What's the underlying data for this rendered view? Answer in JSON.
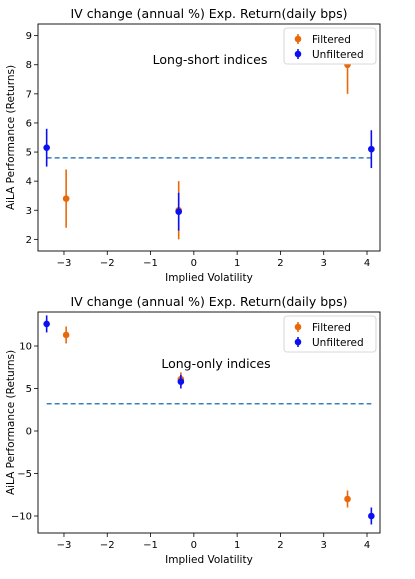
{
  "colors": {
    "filtered": "#E8690B",
    "unfiltered": "#0B10F0",
    "reference": "#3A7FC1"
  },
  "chart_data": [
    {
      "type": "scatter",
      "title": "IV change (annual %) Exp. Return(daily bps)",
      "xlabel": "Implied Volatility",
      "ylabel": "AiLA Performance (Returns)",
      "annotation": "Long-short indices",
      "xlim": [
        -3.6,
        4.3
      ],
      "ylim": [
        1.6,
        9.4
      ],
      "xticks": [
        -3,
        -2,
        -1,
        0,
        1,
        2,
        3,
        4
      ],
      "xtick_labels": [
        "−3",
        "−2",
        "−1",
        "0",
        "1",
        "2",
        "3",
        "4"
      ],
      "yticks": [
        2,
        3,
        4,
        5,
        6,
        7,
        8,
        9
      ],
      "ytick_labels": [
        "2",
        "3",
        "4",
        "5",
        "6",
        "7",
        "8",
        "9"
      ],
      "legend_loc": "top-right",
      "reference_line": {
        "y": 4.8,
        "x": [
          -3.4,
          4.1
        ],
        "style": "dashed"
      },
      "series": [
        {
          "name": "Filtered",
          "color": "#E8690B",
          "points": [
            {
              "x": -2.95,
              "y": 3.4,
              "lo": 2.4,
              "hi": 4.4
            },
            {
              "x": -0.35,
              "y": 3.0,
              "lo": 2.0,
              "hi": 4.0
            },
            {
              "x": 3.55,
              "y": 8.0,
              "lo": 7.0,
              "hi": 9.0
            }
          ]
        },
        {
          "name": "Unfiltered",
          "color": "#0B10F0",
          "points": [
            {
              "x": -3.4,
              "y": 5.15,
              "lo": 4.5,
              "hi": 5.8
            },
            {
              "x": -0.35,
              "y": 2.95,
              "lo": 2.3,
              "hi": 3.6
            },
            {
              "x": 4.1,
              "y": 5.1,
              "lo": 4.45,
              "hi": 5.75
            }
          ]
        }
      ]
    },
    {
      "type": "scatter",
      "title": "IV change (annual %) Exp. Return(daily bps)",
      "xlabel": "Implied Volatility",
      "ylabel": "AiLA Performance (Returns)",
      "annotation": "Long-only indices",
      "xlim": [
        -3.6,
        4.3
      ],
      "ylim": [
        -12,
        14
      ],
      "xticks": [
        -3,
        -2,
        -1,
        0,
        1,
        2,
        3,
        4
      ],
      "xtick_labels": [
        "−3",
        "−2",
        "−1",
        "0",
        "1",
        "2",
        "3",
        "4"
      ],
      "yticks": [
        -10,
        -5,
        0,
        5,
        10
      ],
      "ytick_labels": [
        "−10",
        "−5",
        "0",
        "5",
        "10"
      ],
      "legend_loc": "top-right",
      "reference_line": {
        "y": 3.2,
        "x": [
          -3.4,
          4.1
        ],
        "style": "dashed"
      },
      "series": [
        {
          "name": "Filtered",
          "color": "#E8690B",
          "points": [
            {
              "x": -2.95,
              "y": 11.3,
              "lo": 10.3,
              "hi": 12.3
            },
            {
              "x": -0.3,
              "y": 6.1,
              "lo": 5.3,
              "hi": 6.9
            },
            {
              "x": 3.55,
              "y": -8.0,
              "lo": -9.0,
              "hi": -7.0
            }
          ]
        },
        {
          "name": "Unfiltered",
          "color": "#0B10F0",
          "points": [
            {
              "x": -3.4,
              "y": 12.6,
              "lo": 11.6,
              "hi": 13.6
            },
            {
              "x": -0.3,
              "y": 5.8,
              "lo": 5.0,
              "hi": 6.6
            },
            {
              "x": 4.1,
              "y": -10.0,
              "lo": -11.0,
              "hi": -9.0
            }
          ]
        }
      ]
    }
  ]
}
